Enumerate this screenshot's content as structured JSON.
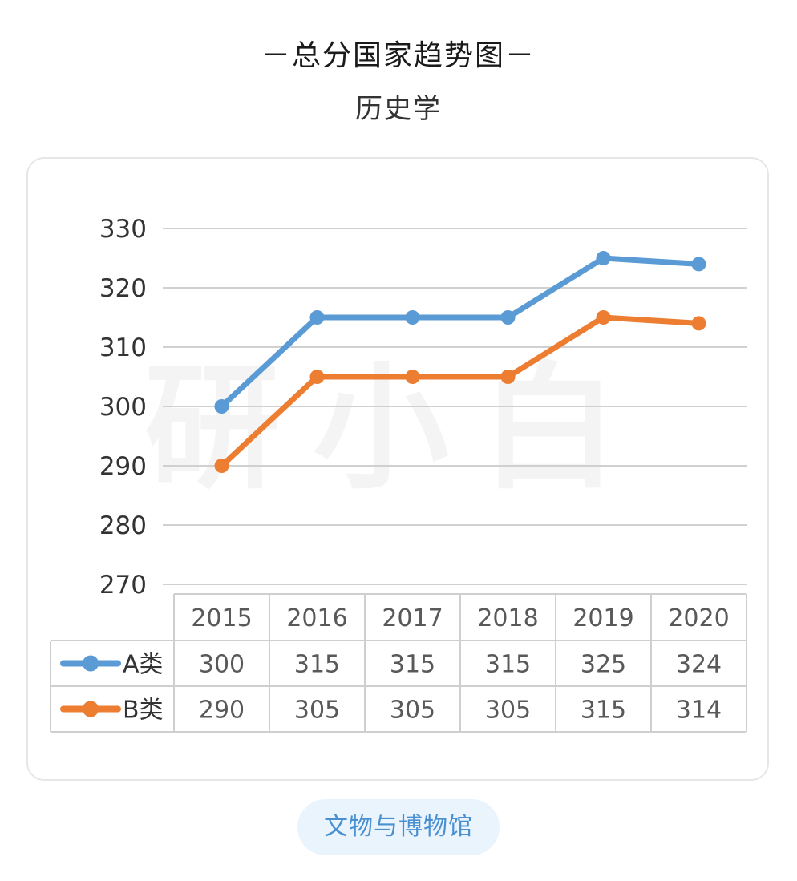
{
  "header": {
    "title": "－总分国家趋势图－",
    "subtitle": "历史学"
  },
  "watermark": "研小白",
  "footer": {
    "tag_label": "文物与博物馆"
  },
  "chart_data": {
    "type": "line",
    "title": "－总分国家趋势图－",
    "subtitle": "历史学",
    "categories": [
      "2015",
      "2016",
      "2017",
      "2018",
      "2019",
      "2020"
    ],
    "series": [
      {
        "name": "A类",
        "values": [
          300,
          315,
          315,
          315,
          325,
          324
        ],
        "color": "#5b9bd5"
      },
      {
        "name": "B类",
        "values": [
          290,
          305,
          305,
          305,
          315,
          314
        ],
        "color": "#ed7d31"
      }
    ],
    "y_ticks": [
      270,
      280,
      290,
      300,
      310,
      320,
      330
    ],
    "ylim": [
      270,
      330
    ],
    "grid": true,
    "legend": "data-table",
    "data_table": true
  }
}
